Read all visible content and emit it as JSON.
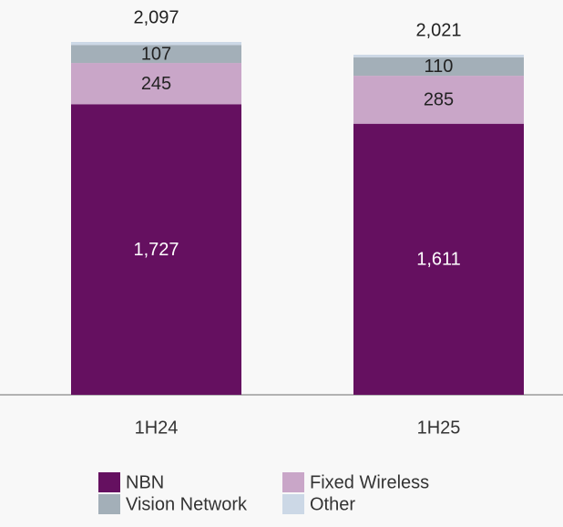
{
  "chart_data": {
    "type": "stacked-bar",
    "categories": [
      "1H24",
      "1H25"
    ],
    "series": [
      {
        "name": "NBN",
        "color": "#651060",
        "values": [
          1727,
          1611
        ],
        "value_labels": [
          "1,727",
          "1,611"
        ]
      },
      {
        "name": "Fixed Wireless",
        "color": "#c9a6c8",
        "values": [
          245,
          285
        ]
      },
      {
        "name": "Vision Network",
        "color": "#a3afb8",
        "values": [
          107,
          110
        ]
      },
      {
        "name": "Other",
        "color": "#ccd8e6",
        "values": [
          18,
          15
        ]
      }
    ],
    "totals": [
      2097,
      2021
    ],
    "total_labels": [
      "2,097",
      "2,021"
    ]
  }
}
